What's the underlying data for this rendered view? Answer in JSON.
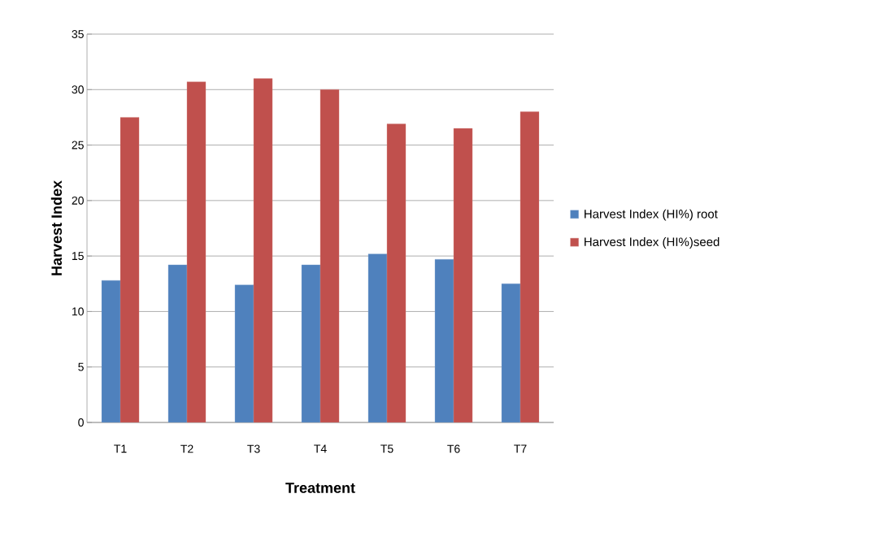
{
  "chart_data": {
    "type": "bar",
    "xlabel": "Treatment",
    "ylabel": "Harvest Index",
    "categories": [
      "T1",
      "T2",
      "T3",
      "T4",
      "T5",
      "T6",
      "T7"
    ],
    "series": [
      {
        "name": "Harvest Index (HI%) root",
        "color": "#4f81bd",
        "values": [
          12.8,
          14.2,
          12.4,
          14.2,
          15.2,
          14.7,
          12.5
        ]
      },
      {
        "name": "Harvest Index (HI%)seed",
        "color": "#c0504d",
        "values": [
          27.5,
          30.7,
          31.0,
          30.0,
          26.9,
          26.5,
          28.0
        ]
      }
    ],
    "ylim": [
      0,
      35
    ],
    "yticks": [
      0,
      5,
      10,
      15,
      20,
      25,
      30,
      35
    ],
    "grid": "y",
    "legend": "right"
  }
}
